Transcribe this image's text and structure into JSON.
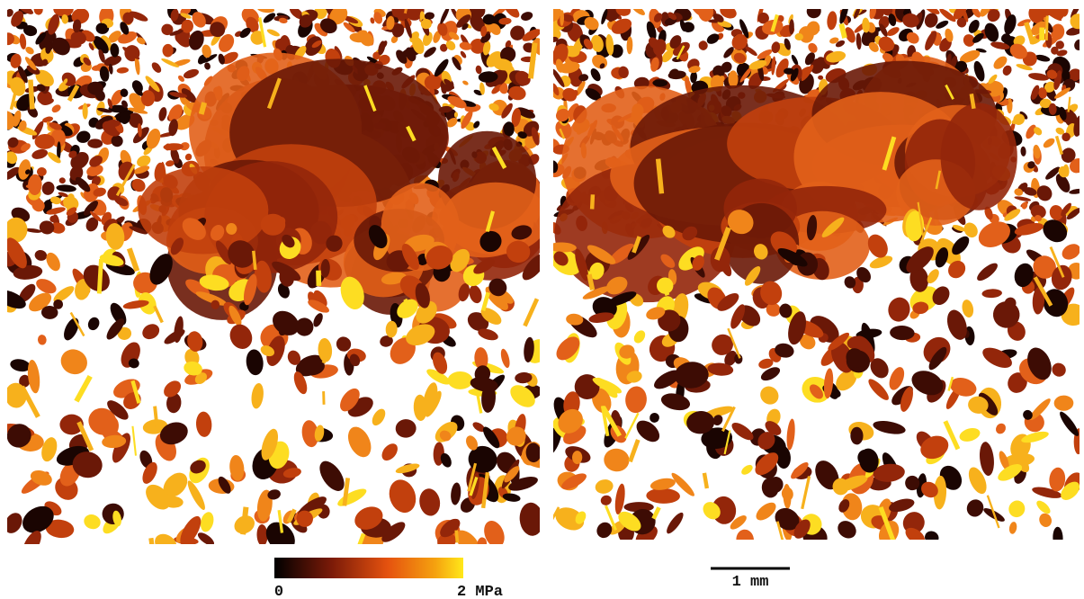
{
  "colorbar": {
    "min_label": "0",
    "max_label": "2 MPa"
  },
  "scale_bar": {
    "label": "1 mm"
  }
}
